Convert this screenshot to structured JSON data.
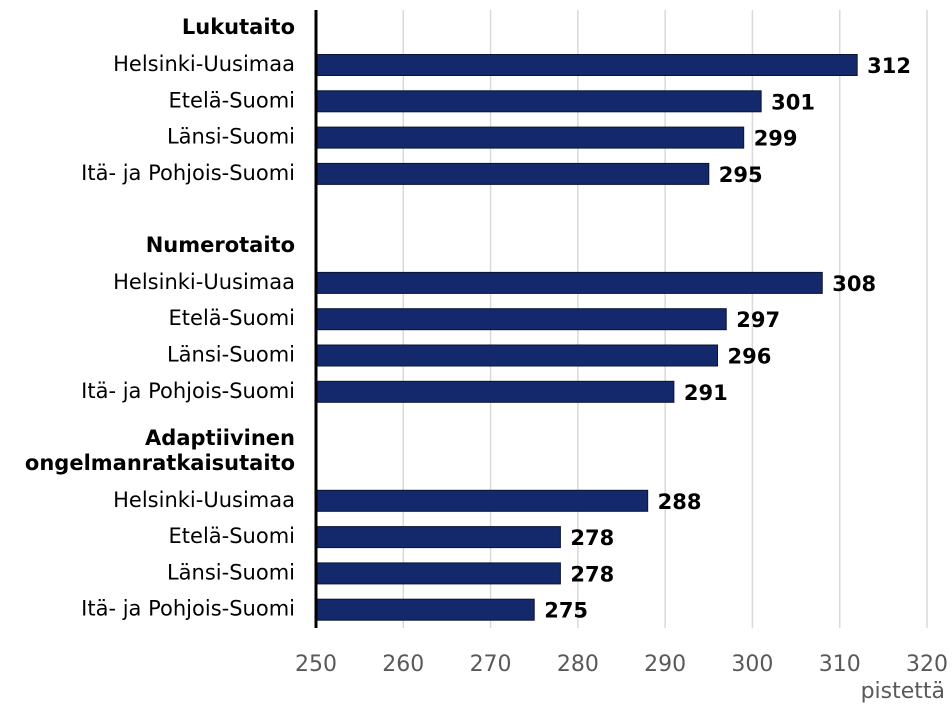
{
  "chart_data": {
    "type": "bar",
    "groups": [
      {
        "name": [
          "Lukutaito"
        ],
        "categories": [
          "Helsinki-Uusimaa",
          "Etelä-Suomi",
          "Länsi-Suomi",
          "Itä- ja Pohjois-Suomi"
        ],
        "values": [
          312,
          301,
          299,
          295
        ]
      },
      {
        "name": [
          "Numerotaito"
        ],
        "categories": [
          "Helsinki-Uusimaa",
          "Etelä-Suomi",
          "Länsi-Suomi",
          "Itä- ja Pohjois-Suomi"
        ],
        "values": [
          308,
          297,
          296,
          291
        ]
      },
      {
        "name": [
          "Adaptiivinen",
          "ongelmanratkaisutaito"
        ],
        "categories": [
          "Helsinki-Uusimaa",
          "Etelä-Suomi",
          "Länsi-Suomi",
          "Itä- ja Pohjois-Suomi"
        ],
        "values": [
          288,
          278,
          278,
          275
        ]
      }
    ],
    "color": "#13296b",
    "xlim": [
      250,
      320
    ],
    "xticks": [
      250,
      260,
      270,
      280,
      290,
      300,
      310,
      320
    ],
    "x_label": "pistettä",
    "grid": true
  }
}
